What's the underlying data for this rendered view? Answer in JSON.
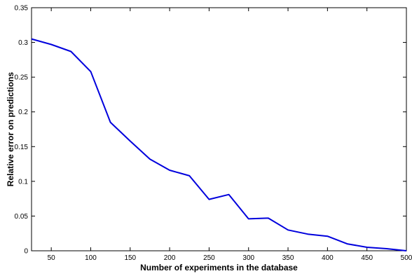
{
  "chart_data": {
    "type": "line",
    "title": "",
    "xlabel": "Number of experiments in the database",
    "ylabel": "Relative error on predictions",
    "xlim": [
      25,
      500
    ],
    "ylim": [
      0,
      0.35
    ],
    "xticks": [
      50,
      100,
      150,
      200,
      250,
      300,
      350,
      400,
      450,
      500
    ],
    "xtick_labels": [
      "50",
      "100",
      "150",
      "200",
      "250",
      "300",
      "350",
      "400",
      "450",
      "500"
    ],
    "yticks": [
      0,
      0.05,
      0.1,
      0.15,
      0.2,
      0.25,
      0.3,
      0.35
    ],
    "ytick_labels": [
      "0",
      "0.05",
      "0.1",
      "0.15",
      "0.2",
      "0.25",
      "0.3",
      "0.35"
    ],
    "grid": false,
    "series": [
      {
        "color": "#0000dd",
        "x": [
          25,
          50,
          75,
          100,
          125,
          150,
          175,
          200,
          225,
          250,
          275,
          300,
          325,
          350,
          375,
          400,
          425,
          450,
          475,
          500
        ],
        "y": [
          0.305,
          0.297,
          0.287,
          0.258,
          0.185,
          0.158,
          0.132,
          0.116,
          0.108,
          0.074,
          0.081,
          0.046,
          0.047,
          0.03,
          0.024,
          0.021,
          0.01,
          0.005,
          0.003,
          0.0
        ]
      }
    ]
  }
}
